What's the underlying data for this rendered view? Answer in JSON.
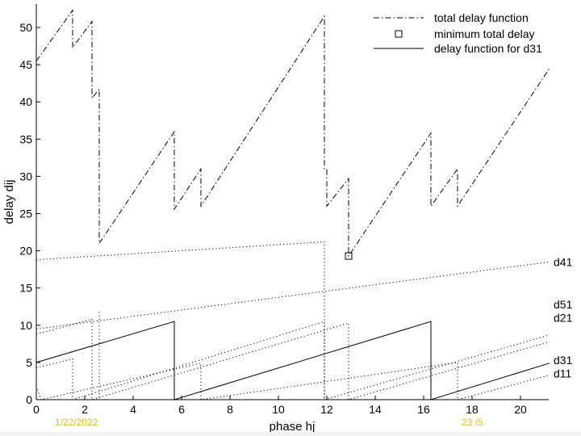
{
  "chart_data": {
    "type": "line",
    "title": "",
    "xlabel": "phase hj",
    "ylabel": "delay dij",
    "xlim": [
      0,
      21.5
    ],
    "ylim": [
      0,
      53
    ],
    "xticks": [
      0,
      2,
      4,
      6,
      8,
      10,
      12,
      14,
      16,
      18,
      20
    ],
    "yticks": [
      0,
      5,
      10,
      15,
      20,
      25,
      30,
      35,
      40,
      45,
      50
    ],
    "grid": false,
    "legend_position": "top-right",
    "legend": [
      {
        "label": "total delay function",
        "style": "dashdot"
      },
      {
        "label": "minimum total delay",
        "style": "square-marker"
      },
      {
        "label": "delay function for d31",
        "style": "solid"
      }
    ],
    "total_delay": {
      "name": "total delay function",
      "points": [
        [
          0,
          45.5
        ],
        [
          1.5,
          52.3
        ],
        [
          1.5,
          47.3
        ],
        [
          2.3,
          50.8
        ],
        [
          2.3,
          40.5
        ],
        [
          2.6,
          41.7
        ],
        [
          2.6,
          21.0
        ],
        [
          5.7,
          36.0
        ],
        [
          5.7,
          25.6
        ],
        [
          6.8,
          31.0
        ],
        [
          6.8,
          26.0
        ],
        [
          11.9,
          51.5
        ],
        [
          11.9,
          31.0
        ],
        [
          12.0,
          31.0
        ],
        [
          12.0,
          26.0
        ],
        [
          12.9,
          29.7
        ],
        [
          12.9,
          19.3
        ],
        [
          16.3,
          35.8
        ],
        [
          16.3,
          26.0
        ],
        [
          17.4,
          31.0
        ],
        [
          17.4,
          26.0
        ],
        [
          21.2,
          44.5
        ]
      ]
    },
    "minimum": {
      "name": "minimum total delay",
      "x": 12.9,
      "y": 19.3
    },
    "d31": {
      "name": "delay function for d31",
      "points": [
        [
          0,
          5.0
        ],
        [
          5.7,
          10.5
        ],
        [
          5.7,
          0
        ],
        [
          16.3,
          10.5
        ],
        [
          16.3,
          0
        ],
        [
          21.2,
          4.9
        ]
      ]
    },
    "dotted_series": [
      {
        "label": "d41",
        "points": [
          [
            0,
            9.5
          ],
          [
            21.2,
            18.5
          ]
        ]
      },
      {
        "label": "d51",
        "points": [
          [
            0,
            4.3
          ],
          [
            1.5,
            5.5
          ],
          [
            1.5,
            0
          ],
          [
            11.9,
            10.5
          ],
          [
            11.9,
            0
          ],
          [
            21.2,
            8.7
          ]
        ]
      },
      {
        "label": "d21",
        "points": [
          [
            0,
            8.8
          ],
          [
            2.3,
            10.8
          ],
          [
            2.3,
            0
          ],
          [
            12.9,
            10.3
          ],
          [
            12.9,
            0
          ],
          [
            21.2,
            7.8
          ]
        ]
      },
      {
        "label": "d11",
        "points": [
          [
            0,
            1.8
          ],
          [
            0.2,
            0
          ],
          [
            6.8,
            4.9
          ],
          [
            6.8,
            0
          ],
          [
            17.4,
            5.0
          ],
          [
            17.4,
            0
          ],
          [
            21.2,
            3.3
          ]
        ]
      },
      {
        "label": "",
        "points": [
          [
            0,
            18.8
          ],
          [
            11.9,
            21.2
          ],
          [
            11.9,
            0
          ]
        ]
      },
      {
        "label": "",
        "points": [
          [
            2.6,
            11.8
          ],
          [
            2.6,
            0
          ]
        ]
      }
    ]
  },
  "footer": {
    "date": "1/22/2022",
    "page": "23 /5"
  },
  "colors": {
    "line": "#000000",
    "footer_text": "#e8c400"
  }
}
